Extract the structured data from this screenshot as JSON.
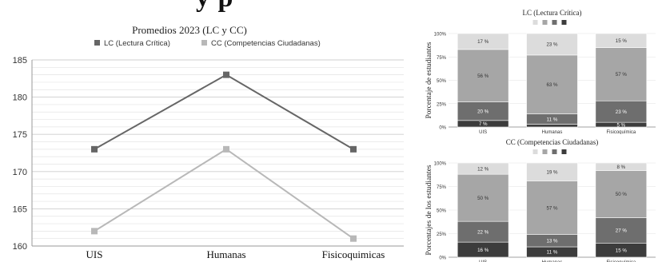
{
  "page": {
    "banner_fragment": "y                    p"
  },
  "chart_data": [
    {
      "type": "line",
      "title": "Promedios 2023 (LC y CC)",
      "categories": [
        "UIS",
        "Humanas",
        "Fisicoquimicas"
      ],
      "series": [
        {
          "name": "LC (Lectura Crítica)",
          "values": [
            173,
            183,
            173
          ],
          "color": "#666666"
        },
        {
          "name": "CC (Competencias Ciudadanas)",
          "values": [
            162,
            173,
            161
          ],
          "color": "#b8b8b8"
        }
      ],
      "ylim": [
        160,
        185
      ],
      "yticks": [
        "160",
        "165",
        "170",
        "175",
        "180",
        "185"
      ],
      "grid": true,
      "legend": "top"
    },
    {
      "type": "bar",
      "stacked": true,
      "title": "LC (Lectura Crítica)",
      "ylabel": "Porcentaje de estudiantes",
      "categories": [
        "UIS",
        "Humanas",
        "Fisicoquímica"
      ],
      "yticks": [
        "0%",
        "25%",
        "50%",
        "75%",
        "100%"
      ],
      "ylim": [
        0,
        100
      ],
      "legend": "top",
      "series": [
        {
          "values": [
            7,
            3,
            5
          ],
          "labels": [
            "7 %",
            "",
            "5 %"
          ],
          "color": "#3c3c3c"
        },
        {
          "values": [
            20,
            11,
            23
          ],
          "labels": [
            "20 %",
            "11 %",
            "23 %"
          ],
          "color": "#6e6e6e"
        },
        {
          "values": [
            56,
            63,
            57
          ],
          "labels": [
            "56 %",
            "63 %",
            "57 %"
          ],
          "color": "#a6a6a6"
        },
        {
          "values": [
            17,
            23,
            15
          ],
          "labels": [
            "17 %",
            "23 %",
            "15 %"
          ],
          "color": "#dcdcdc"
        }
      ]
    },
    {
      "type": "bar",
      "stacked": true,
      "title": "CC (Competencias Ciudadanas)",
      "ylabel": "Porcentajes de los estudiantes",
      "categories": [
        "UIS",
        "Humanas",
        "Fisicoquímica"
      ],
      "yticks": [
        "0%",
        "25%",
        "50%",
        "75%",
        "100%"
      ],
      "ylim": [
        0,
        100
      ],
      "legend": "top",
      "series": [
        {
          "values": [
            16,
            11,
            15
          ],
          "labels": [
            "16 %",
            "11 %",
            "15 %"
          ],
          "color": "#3c3c3c"
        },
        {
          "values": [
            22,
            13,
            27
          ],
          "labels": [
            "22 %",
            "13 %",
            "27 %"
          ],
          "color": "#6e6e6e"
        },
        {
          "values": [
            50,
            57,
            50
          ],
          "labels": [
            "50 %",
            "57 %",
            "50 %"
          ],
          "color": "#a6a6a6"
        },
        {
          "values": [
            12,
            19,
            8
          ],
          "labels": [
            "12 %",
            "19 %",
            "8 %"
          ],
          "color": "#dcdcdc"
        }
      ]
    }
  ]
}
